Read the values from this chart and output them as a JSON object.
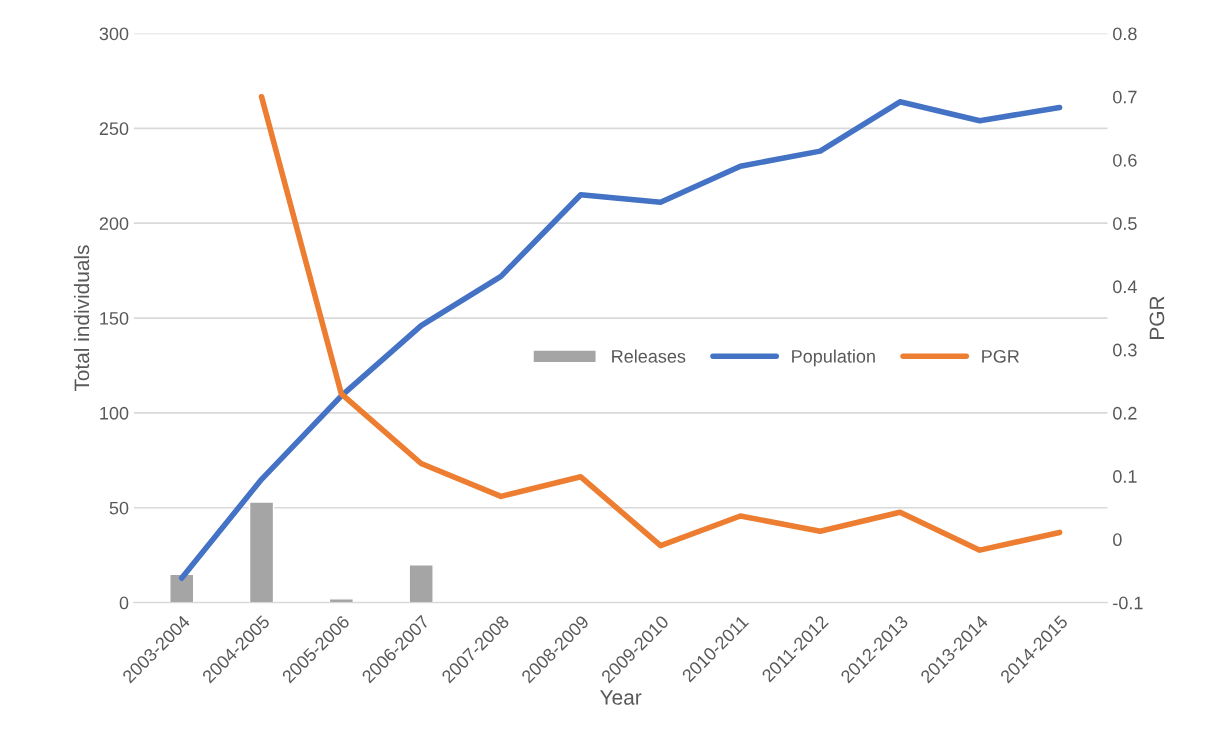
{
  "chart_data": {
    "type": "bar",
    "xlabel": "Year",
    "ylabel": "Total individuals",
    "y2label": "PGR",
    "categories": [
      "2003-2004",
      "2004-2005",
      "2005-2006",
      "2006-2007",
      "2007-2008",
      "2008-2009",
      "2009-2010",
      "2010-2011",
      "2011-2012",
      "2012-2013",
      "2013-2014",
      "2014-2015"
    ],
    "series": [
      {
        "name": "Releases",
        "color": "#a5a5a5",
        "values": [
          15,
          53,
          2,
          20,
          null,
          null,
          null,
          null,
          null,
          null,
          null,
          null
        ]
      },
      {
        "name": "Population",
        "type": "line",
        "color": "#4472c4",
        "values": [
          13,
          65,
          109,
          146,
          172,
          215,
          211,
          230,
          238,
          264,
          254,
          261
        ]
      },
      {
        "name": "PGR",
        "type": "line",
        "axis": "y2",
        "color": "#ed7d31",
        "values": [
          null,
          0.7,
          0.23,
          0.12,
          0.068,
          0.099,
          -0.01,
          0.037,
          0.013,
          0.043,
          -0.017,
          0.011
        ]
      }
    ],
    "ylim": [
      0,
      300
    ],
    "yticks": [
      0,
      50,
      100,
      150,
      200,
      250,
      300
    ],
    "y2lim": [
      -0.1,
      0.8
    ],
    "y2ticks": [
      -0.1,
      0,
      0.1,
      0.2,
      0.3,
      0.4,
      0.5,
      0.6,
      0.7,
      0.8
    ],
    "grid": "y",
    "legend": "center"
  }
}
